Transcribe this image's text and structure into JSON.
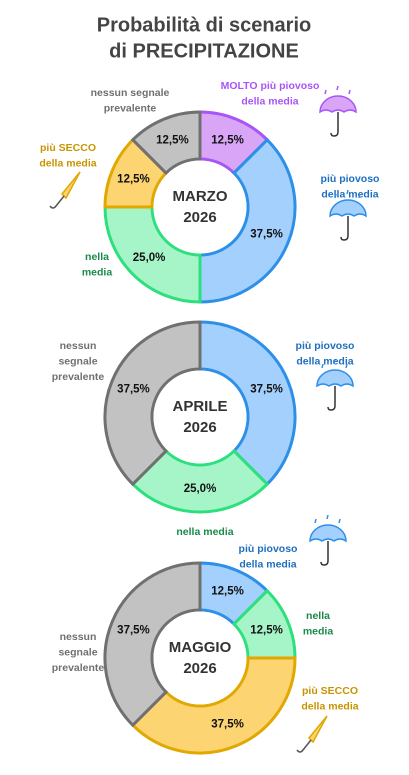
{
  "title": [
    "Probabilità di scenario",
    "di PRECIPITAZIONE"
  ],
  "chart_data": [
    {
      "type": "donut",
      "center_label": [
        "MARZO",
        "2026"
      ],
      "categories": [
        [
          "MOLTO più piovoso",
          "della media"
        ],
        [
          "più piovoso",
          "della media"
        ],
        [
          "nella",
          "media"
        ],
        [
          "più SECCO",
          "della media"
        ],
        [
          "nessun segnale",
          "prevalente"
        ]
      ],
      "values": [
        12.5,
        37.5,
        25,
        12.5,
        12.5
      ],
      "value_labels": [
        "12,5%",
        "37,5%",
        "25,0%",
        "12,5%",
        "12,5%"
      ],
      "colors": [
        "#d9a6f7",
        "#a3d0fc",
        "#a6f5c9",
        "#fcd472",
        "#c2c2c2"
      ],
      "edge_colors": [
        "#a855f7",
        "#2e8fe8",
        "#2ee07d",
        "#e0a800",
        "#707070"
      ],
      "label_colors": [
        "#a855f7",
        "#1f6fbf",
        "#1a8a4a",
        "#c99400",
        "#707070"
      ]
    },
    {
      "type": "donut",
      "center_label": [
        "APRILE",
        "2026"
      ],
      "categories": [
        [
          "più piovoso",
          "della media"
        ],
        null,
        [
          "nessun",
          "segnale",
          "prevalente"
        ]
      ],
      "values": [
        37.5,
        25,
        37.5
      ],
      "value_labels": [
        "37,5%",
        "25,0%",
        "37,5%"
      ],
      "colors": [
        "#a3d0fc",
        "#a6f5c9",
        "#c2c2c2"
      ],
      "edge_colors": [
        "#2e8fe8",
        "#2ee07d",
        "#707070"
      ],
      "label_colors": [
        "#1f6fbf",
        "#1a8a4a",
        "#707070"
      ]
    },
    {
      "type": "donut",
      "center_label": [
        "MAGGIO",
        "2026"
      ],
      "annotation": "nella media",
      "categories": [
        [
          "più piovoso",
          "della media"
        ],
        [
          "nella",
          "media"
        ],
        [
          "più SECCO",
          "della media"
        ],
        [
          "nessun",
          "segnale",
          "prevalente"
        ]
      ],
      "values": [
        12.5,
        12.5,
        37.5,
        37.5
      ],
      "value_labels": [
        "12,5%",
        "12,5%",
        "37,5%",
        "37,5%"
      ],
      "colors": [
        "#a3d0fc",
        "#a6f5c9",
        "#fcd472",
        "#c2c2c2"
      ],
      "edge_colors": [
        "#2e8fe8",
        "#2ee07d",
        "#e0a800",
        "#707070"
      ],
      "label_colors": [
        "#1f6fbf",
        "#1a8a4a",
        "#c99400",
        "#707070"
      ]
    }
  ]
}
